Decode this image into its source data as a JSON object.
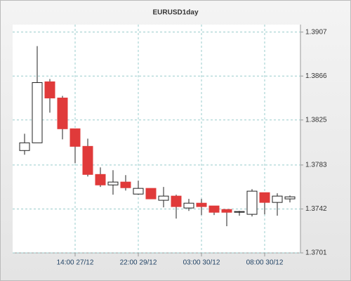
{
  "chart_data": {
    "type": "candlestick",
    "title": "EURUSD1day",
    "categories": [
      null,
      null,
      null,
      null,
      "14:00 27/12",
      null,
      null,
      null,
      null,
      "22:00 29/12",
      null,
      null,
      null,
      null,
      "03:00 30/12",
      null,
      null,
      null,
      null,
      "08:00 30/12",
      null,
      null
    ],
    "open": [
      1.37965,
      1.38037,
      1.38606,
      1.38455,
      1.38168,
      1.38004,
      1.37742,
      1.37644,
      1.37671,
      1.37559,
      1.37612,
      1.37501,
      1.3754,
      1.37429,
      1.37474,
      1.37448,
      1.37415,
      1.37389,
      1.3737,
      1.37572,
      1.37481,
      1.37514
    ],
    "high": [
      1.38122,
      1.38939,
      1.38632,
      1.38475,
      1.38168,
      1.38076,
      1.37808,
      1.37782,
      1.37736,
      1.37684,
      1.37612,
      1.37625,
      1.37553,
      1.37514,
      1.37514,
      1.37448,
      1.37415,
      1.37402,
      1.37605,
      1.37572,
      1.37566,
      1.37546
    ],
    "low": [
      1.37926,
      1.38037,
      1.38318,
      1.38069,
      1.37847,
      1.37723,
      1.37625,
      1.37553,
      1.37592,
      1.37553,
      1.37514,
      1.37435,
      1.3733,
      1.37402,
      1.37363,
      1.37363,
      1.37259,
      1.37357,
      1.3735,
      1.3737,
      1.37357,
      1.37481
    ],
    "close": [
      1.38037,
      1.38599,
      1.38455,
      1.38168,
      1.38004,
      1.37742,
      1.37644,
      1.37671,
      1.37618,
      1.37612,
      1.37514,
      1.3754,
      1.37442,
      1.37474,
      1.37442,
      1.37389,
      1.37389,
      1.37396,
      1.37586,
      1.37481,
      1.3754,
      1.37533
    ],
    "up_color": "#ffffff",
    "down_color": "#e03a3a",
    "ylim": [
      1.3701,
      1.3914
    ],
    "yticks": [
      1.3701,
      1.3742,
      1.3783,
      1.3825,
      1.3866,
      1.3907
    ],
    "grid": true
  }
}
